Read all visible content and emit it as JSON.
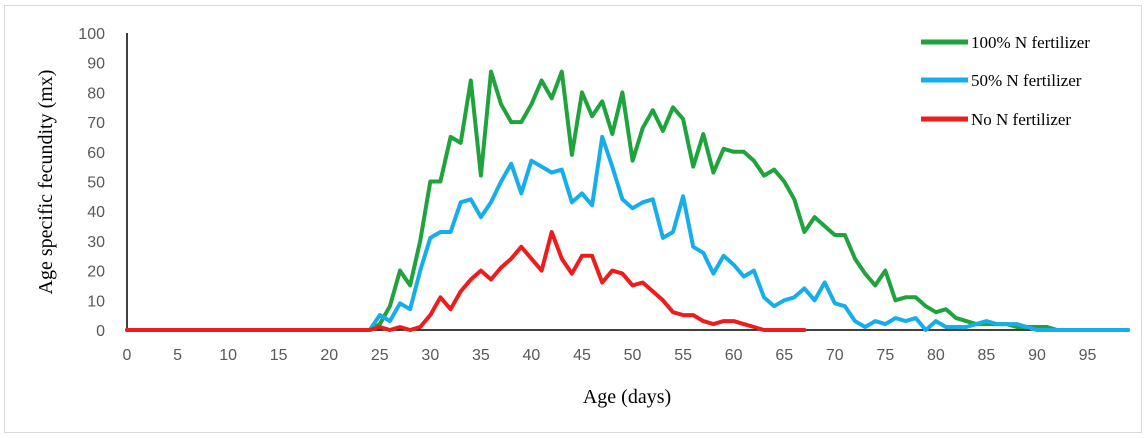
{
  "chart_data": {
    "type": "line",
    "title": "",
    "xlabel": "Age (days)",
    "ylabel": "Age specific fecundity (mx)",
    "xlim": [
      0,
      99
    ],
    "ylim": [
      0,
      100
    ],
    "x_ticks": [
      0,
      5,
      10,
      15,
      20,
      25,
      30,
      35,
      40,
      45,
      50,
      55,
      60,
      65,
      70,
      75,
      80,
      85,
      90,
      95
    ],
    "y_ticks": [
      0,
      10,
      20,
      30,
      40,
      50,
      60,
      70,
      80,
      90,
      100
    ],
    "grid": false,
    "legend_position": "top-right",
    "series": [
      {
        "name": "100% N fertilizer",
        "color": "#1fa33c",
        "x": [
          0,
          1,
          2,
          3,
          4,
          5,
          6,
          7,
          8,
          9,
          10,
          11,
          12,
          13,
          14,
          15,
          16,
          17,
          18,
          19,
          20,
          21,
          22,
          23,
          24,
          25,
          26,
          27,
          28,
          29,
          30,
          31,
          32,
          33,
          34,
          35,
          36,
          37,
          38,
          39,
          40,
          41,
          42,
          43,
          44,
          45,
          46,
          47,
          48,
          49,
          50,
          51,
          52,
          53,
          54,
          55,
          56,
          57,
          58,
          59,
          60,
          61,
          62,
          63,
          64,
          65,
          66,
          67,
          68,
          69,
          70,
          71,
          72,
          73,
          74,
          75,
          76,
          77,
          78,
          79,
          80,
          81,
          82,
          83,
          84,
          85,
          86,
          87,
          88,
          89,
          90,
          91,
          92,
          93,
          94,
          95,
          96,
          97,
          98,
          99
        ],
        "y": [
          0,
          0,
          0,
          0,
          0,
          0,
          0,
          0,
          0,
          0,
          0,
          0,
          0,
          0,
          0,
          0,
          0,
          0,
          0,
          0,
          0,
          0,
          0,
          0,
          0,
          2,
          8,
          20,
          15,
          30,
          50,
          50,
          65,
          63,
          84,
          52,
          87,
          76,
          70,
          70,
          76,
          84,
          78,
          87,
          59,
          80,
          72,
          77,
          66,
          80,
          57,
          68,
          74,
          67,
          75,
          71,
          55,
          66,
          53,
          61,
          60,
          60,
          57,
          52,
          54,
          50,
          44,
          33,
          38,
          35,
          32,
          32,
          24,
          19,
          15,
          20,
          10,
          11,
          11,
          8,
          6,
          7,
          4,
          3,
          2,
          2,
          2,
          2,
          1,
          1,
          1,
          1,
          0,
          0,
          0,
          0,
          0,
          0,
          0,
          0
        ]
      },
      {
        "name": "50% N fertilizer",
        "color": "#16aeea",
        "x": [
          0,
          1,
          2,
          3,
          4,
          5,
          6,
          7,
          8,
          9,
          10,
          11,
          12,
          13,
          14,
          15,
          16,
          17,
          18,
          19,
          20,
          21,
          22,
          23,
          24,
          25,
          26,
          27,
          28,
          29,
          30,
          31,
          32,
          33,
          34,
          35,
          36,
          37,
          38,
          39,
          40,
          41,
          42,
          43,
          44,
          45,
          46,
          47,
          48,
          49,
          50,
          51,
          52,
          53,
          54,
          55,
          56,
          57,
          58,
          59,
          60,
          61,
          62,
          63,
          64,
          65,
          66,
          67,
          68,
          69,
          70,
          71,
          72,
          73,
          74,
          75,
          76,
          77,
          78,
          79,
          80,
          81,
          82,
          83,
          84,
          85,
          86,
          87,
          88,
          89,
          90,
          91,
          92,
          93,
          94,
          95,
          96,
          97,
          98,
          99
        ],
        "y": [
          0,
          0,
          0,
          0,
          0,
          0,
          0,
          0,
          0,
          0,
          0,
          0,
          0,
          0,
          0,
          0,
          0,
          0,
          0,
          0,
          0,
          0,
          0,
          0,
          0,
          5,
          3,
          9,
          7,
          20,
          31,
          33,
          33,
          43,
          44,
          38,
          43,
          50,
          56,
          46,
          57,
          55,
          53,
          54,
          43,
          46,
          42,
          65,
          55,
          44,
          41,
          43,
          44,
          31,
          33,
          45,
          28,
          26,
          19,
          25,
          22,
          18,
          20,
          11,
          8,
          10,
          11,
          14,
          10,
          16,
          9,
          8,
          3,
          1,
          3,
          2,
          4,
          3,
          4,
          0,
          3,
          1,
          1,
          1,
          2,
          3,
          2,
          2,
          2,
          1,
          0,
          0,
          0,
          0,
          0,
          0,
          0,
          0,
          0,
          0
        ]
      },
      {
        "name": "No N fertilizer",
        "color": "#ee1c1c",
        "x": [
          0,
          1,
          2,
          3,
          4,
          5,
          6,
          7,
          8,
          9,
          10,
          11,
          12,
          13,
          14,
          15,
          16,
          17,
          18,
          19,
          20,
          21,
          22,
          23,
          24,
          25,
          26,
          27,
          28,
          29,
          30,
          31,
          32,
          33,
          34,
          35,
          36,
          37,
          38,
          39,
          40,
          41,
          42,
          43,
          44,
          45,
          46,
          47,
          48,
          49,
          50,
          51,
          52,
          53,
          54,
          55,
          56,
          57,
          58,
          59,
          60,
          61,
          62,
          63,
          64,
          65,
          66,
          67
        ],
        "y": [
          0,
          0,
          0,
          0,
          0,
          0,
          0,
          0,
          0,
          0,
          0,
          0,
          0,
          0,
          0,
          0,
          0,
          0,
          0,
          0,
          0,
          0,
          0,
          0,
          0,
          1,
          0,
          1,
          0,
          1,
          5,
          11,
          7,
          13,
          17,
          20,
          17,
          21,
          24,
          28,
          24,
          20,
          33,
          24,
          19,
          25,
          25,
          16,
          20,
          19,
          15,
          16,
          13,
          10,
          6,
          5,
          5,
          3,
          2,
          3,
          3,
          2,
          1,
          0,
          0,
          0,
          0,
          0
        ]
      }
    ]
  }
}
